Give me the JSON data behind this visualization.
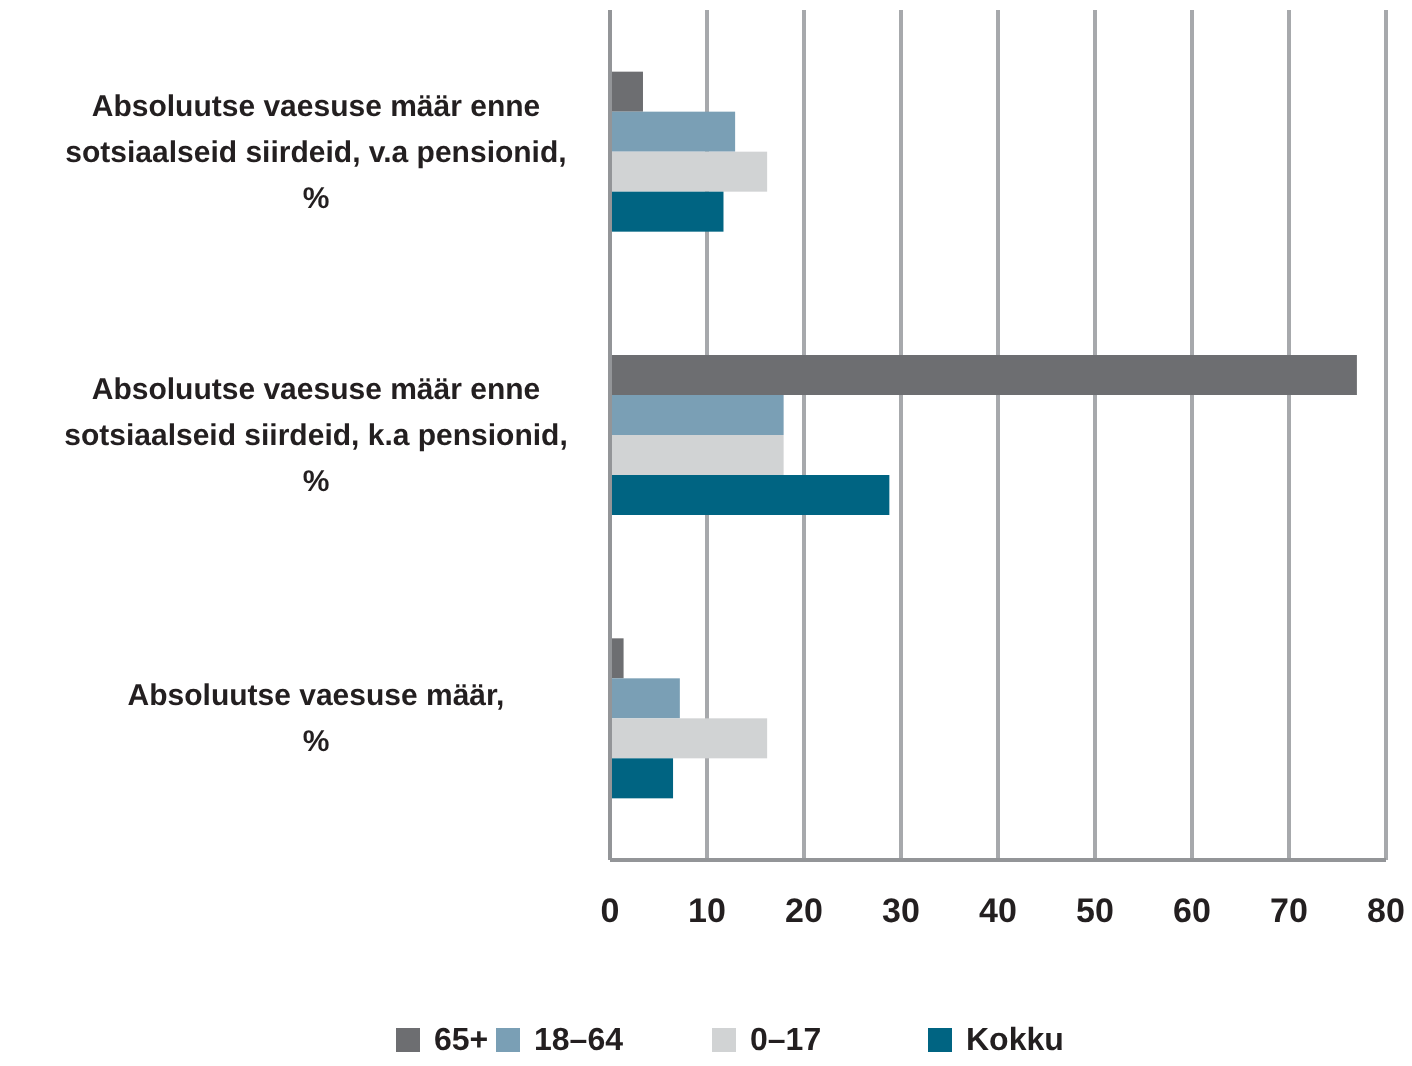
{
  "chart_data": {
    "type": "bar",
    "orientation": "horizontal",
    "categories": [
      "Absoluutse vaesuse määr enne\nsotsiaalseid siirdeid, v.a pensionid,\n%",
      "Absoluutse vaesuse määr enne\nsotsiaalseid siirdeid, k.a pensionid,\n%",
      "Absoluutse vaesuse määr,\n%"
    ],
    "series": [
      {
        "name": "65+",
        "color": "#6d6e71",
        "values": [
          3.4,
          77.0,
          1.4
        ]
      },
      {
        "name": "18–64",
        "color": "#7a9fb5",
        "values": [
          12.9,
          17.9,
          7.2
        ]
      },
      {
        "name": "0–17",
        "color": "#d1d3d4",
        "values": [
          16.2,
          17.9,
          16.2
        ]
      },
      {
        "name": "Kokku",
        "color": "#006482",
        "values": [
          11.7,
          28.8,
          6.5
        ]
      }
    ],
    "xlim": [
      0,
      80
    ],
    "xticks": [
      0,
      10,
      20,
      30,
      40,
      50,
      60,
      70,
      80
    ],
    "grid": "x",
    "legend": "bottom"
  }
}
